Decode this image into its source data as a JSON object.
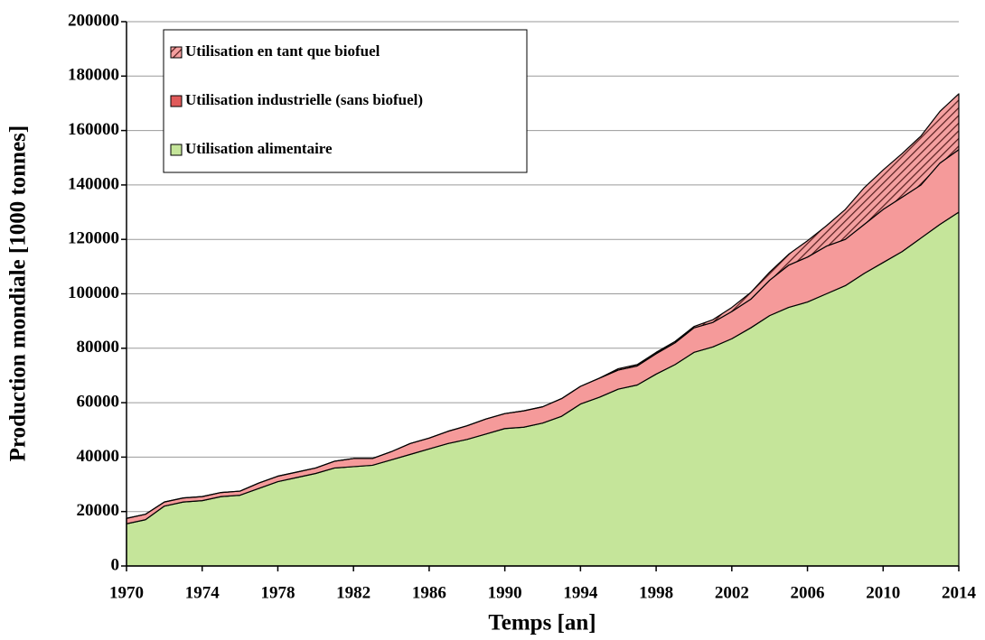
{
  "chart_data": {
    "type": "stacked_area",
    "x_label": "Temps [an]",
    "y_label": "Production mondiale [1000 tonnes]",
    "x": [
      1970,
      1971,
      1972,
      1973,
      1974,
      1975,
      1976,
      1977,
      1978,
      1979,
      1980,
      1981,
      1982,
      1983,
      1984,
      1985,
      1986,
      1987,
      1988,
      1989,
      1990,
      1991,
      1992,
      1993,
      1994,
      1995,
      1996,
      1997,
      1998,
      1999,
      2000,
      2001,
      2002,
      2003,
      2004,
      2005,
      2006,
      2007,
      2008,
      2009,
      2010,
      2011,
      2012,
      2013,
      2014
    ],
    "series": [
      {
        "name": "Utilisation alimentaire",
        "color": "#c5e59a",
        "values": [
          15500,
          17000,
          22000,
          23500,
          24000,
          25500,
          26000,
          28500,
          31000,
          32500,
          34000,
          36000,
          36500,
          37000,
          39000,
          41000,
          43000,
          45000,
          46500,
          48500,
          50500,
          51000,
          52500,
          55000,
          59500,
          62000,
          65000,
          66500,
          70500,
          74000,
          78500,
          80500,
          83500,
          87500,
          92000,
          95000,
          97000,
          100000,
          103000,
          107500,
          111500,
          115500,
          120500,
          125500,
          130000
        ]
      },
      {
        "name": "Utilisation industrielle (sans biofuel)",
        "color": "#f59a9a",
        "values": [
          2000,
          2000,
          1500,
          1500,
          1500,
          1500,
          1500,
          2000,
          2000,
          2000,
          2000,
          2500,
          3000,
          2500,
          3000,
          4000,
          4000,
          4500,
          5000,
          5500,
          5500,
          6000,
          6000,
          6500,
          6500,
          7000,
          7000,
          7000,
          7500,
          8000,
          9000,
          9000,
          10000,
          10500,
          13000,
          15500,
          16500,
          17500,
          17000,
          18000,
          19500,
          20000,
          19500,
          22500,
          23000
        ]
      },
      {
        "name": "Utilisation en tant que biofuel",
        "color": "#f4a0a0",
        "hatch": true,
        "values": [
          0,
          0,
          0,
          0,
          0,
          0,
          0,
          0,
          0,
          0,
          0,
          0,
          0,
          0,
          0,
          0,
          0,
          0,
          0,
          0,
          0,
          0,
          0,
          0,
          0,
          0,
          500,
          500,
          500,
          500,
          500,
          1000,
          1500,
          2500,
          3000,
          4000,
          6000,
          7500,
          11000,
          13500,
          14500,
          16000,
          18000,
          19000,
          20500
        ]
      }
    ],
    "xlim": [
      1970,
      2014
    ],
    "xticks": [
      1970,
      1974,
      1978,
      1982,
      1986,
      1990,
      1994,
      1998,
      2002,
      2006,
      2010,
      2014
    ],
    "ylim": [
      0,
      200000
    ],
    "yticks": [
      0,
      20000,
      40000,
      60000,
      80000,
      100000,
      120000,
      140000,
      160000,
      180000,
      200000
    ],
    "grid": true,
    "legend": "upper left"
  }
}
